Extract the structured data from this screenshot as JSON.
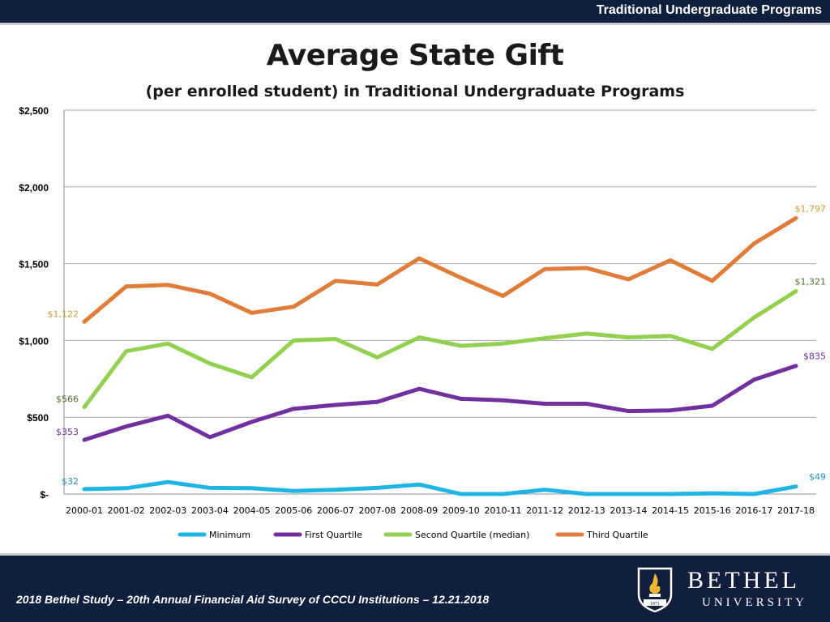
{
  "header": {
    "section_title": "Traditional Undergraduate Programs"
  },
  "footer": {
    "study_text": "2018 Bethel Study – 20th Annual Financial Aid Survey of CCCU Institutions – 12.21.2018",
    "logo_name": "BETHEL",
    "logo_sub": "UNIVERSITY",
    "logo_year": "1871"
  },
  "colors": {
    "minimum": "#1fb4e6",
    "first_quartile": "#7030a0",
    "median": "#92d050",
    "third_quartile": "#e07b39"
  },
  "chart_data": {
    "type": "line",
    "title": "Average State Gift",
    "subtitle": "(per enrolled student) in  Traditional Undergraduate Programs",
    "categories": [
      "2000-01",
      "2001-02",
      "2002-03",
      "2003-04",
      "2004-05",
      "2005-06",
      "2006-07",
      "2007-08",
      "2008-09",
      "2009-10",
      "2010-11",
      "2011-12",
      "2012-13",
      "2013-14",
      "2014-15",
      "2015-16",
      "2016-17",
      "2017-18"
    ],
    "ylim": [
      0,
      2500
    ],
    "yticks": [
      0,
      500,
      1000,
      1500,
      2000,
      2500
    ],
    "ytick_labels": [
      "$-",
      "$500",
      "$1,000",
      "$1,500",
      "$2,000",
      "$2,500"
    ],
    "grid": true,
    "legend": "bottom",
    "series": [
      {
        "name": "Minimum",
        "color": "#1fb4e6",
        "values": [
          32,
          38,
          78,
          40,
          38,
          20,
          28,
          40,
          62,
          0,
          0,
          28,
          0,
          0,
          0,
          5,
          0,
          49
        ],
        "start_label": "$32",
        "end_label": "$49"
      },
      {
        "name": "First Quartile",
        "color": "#7030a0",
        "values": [
          353,
          440,
          510,
          370,
          470,
          555,
          580,
          600,
          685,
          620,
          610,
          588,
          588,
          540,
          545,
          575,
          745,
          835
        ],
        "start_label": "$353",
        "end_label": "$835"
      },
      {
        "name": "Second Quartile (median)",
        "color": "#92d050",
        "values": [
          566,
          930,
          980,
          850,
          760,
          1000,
          1010,
          890,
          1020,
          965,
          980,
          1015,
          1045,
          1020,
          1030,
          945,
          1150,
          1321
        ],
        "start_label": "$566",
        "end_label": "$1,321"
      },
      {
        "name": "Third Quartile",
        "color": "#e07b39",
        "values": [
          1122,
          1352,
          1362,
          1305,
          1180,
          1220,
          1388,
          1365,
          1535,
          1408,
          1290,
          1465,
          1472,
          1398,
          1522,
          1388,
          1632,
          1797
        ],
        "start_label": "$1,122",
        "end_label": "$1,797"
      }
    ]
  }
}
